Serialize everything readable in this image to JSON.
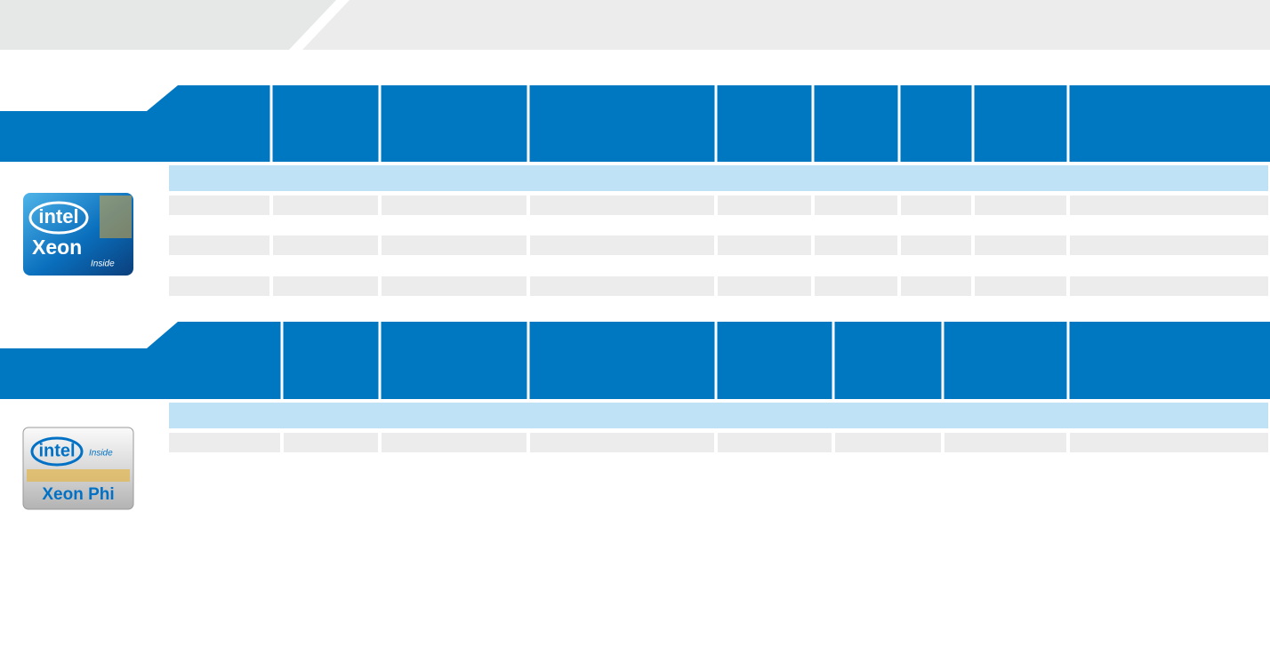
{
  "logos": [
    {
      "brand": "intel",
      "product": "Xeon",
      "tagline": "Inside"
    },
    {
      "brand": "intel",
      "tagline": "Inside",
      "product": "Xeon Phi"
    }
  ]
}
